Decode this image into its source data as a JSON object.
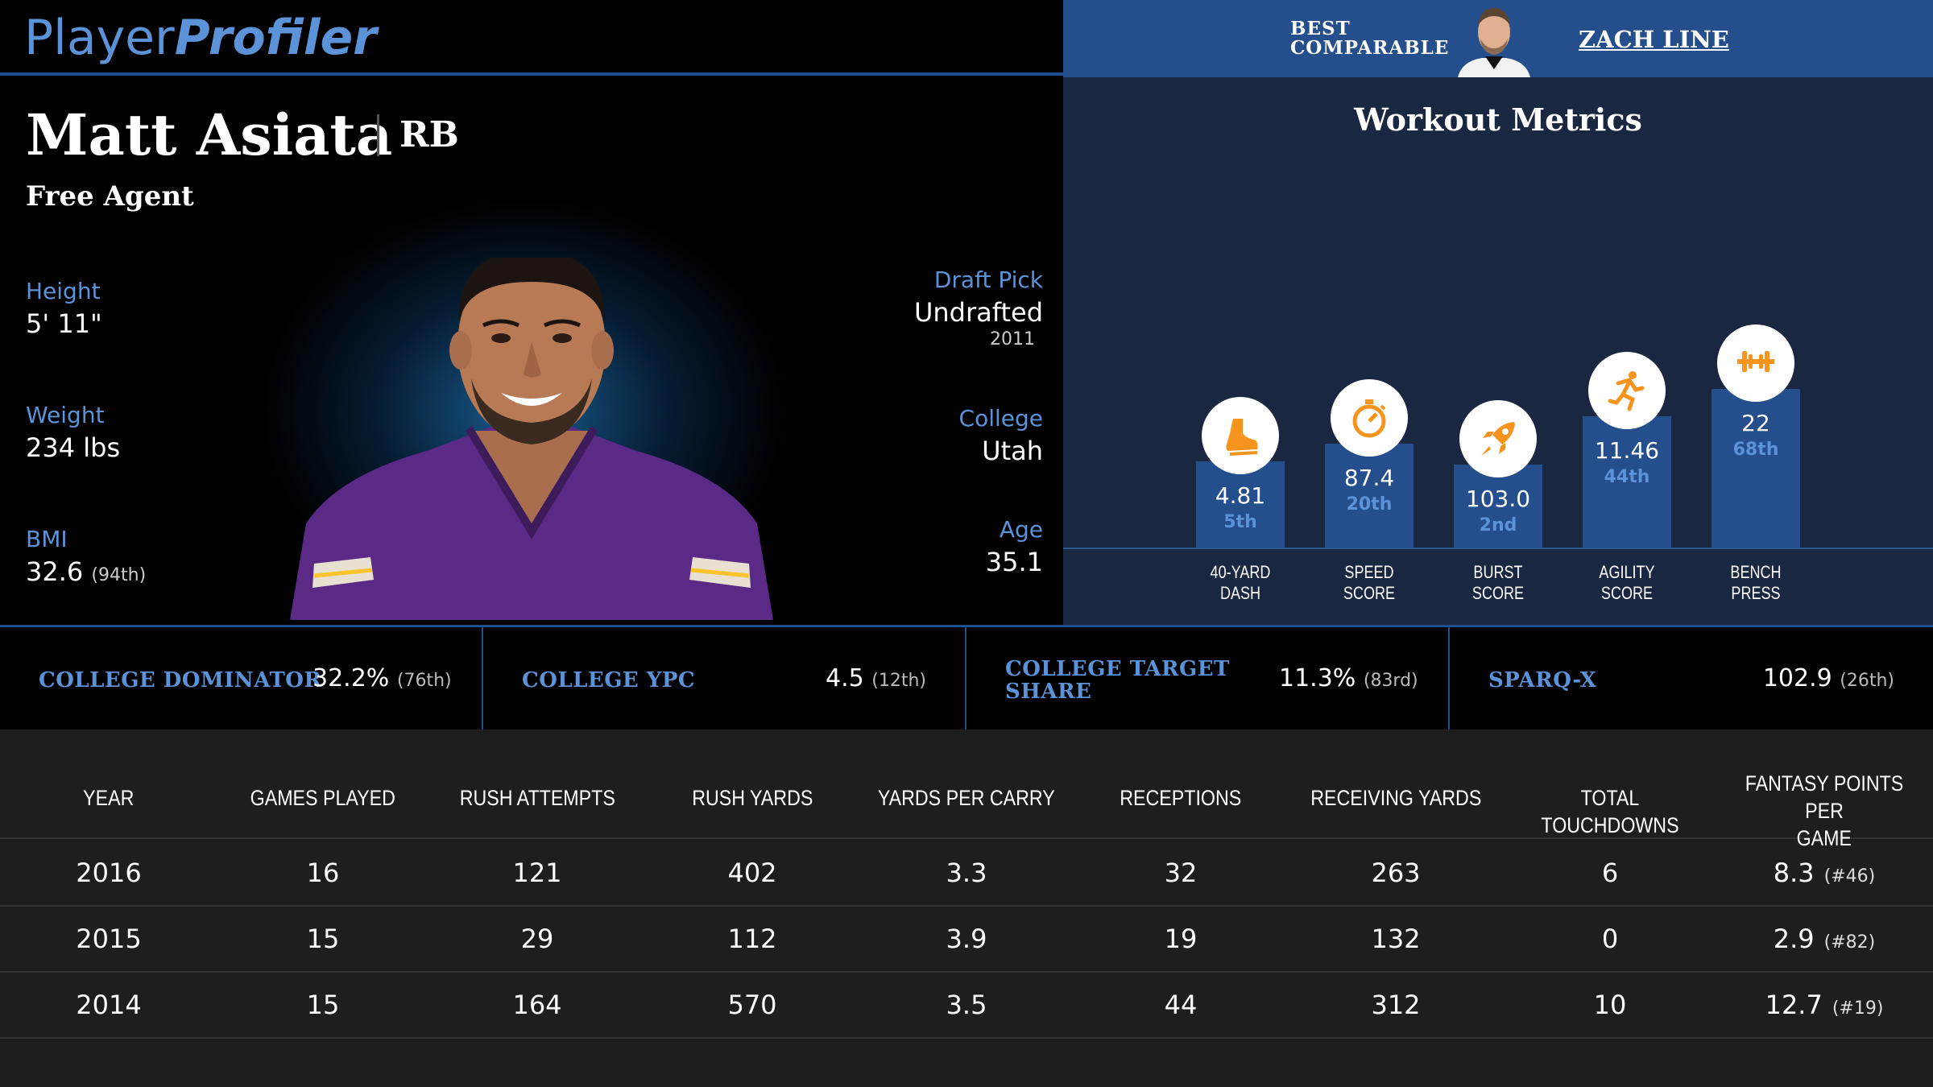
{
  "brand": {
    "part1": "Player",
    "part2": "Profiler"
  },
  "player": {
    "name": "Matt Asiata",
    "position": "RB",
    "team": "Free Agent",
    "height_label": "Height",
    "height": "5' 11\"",
    "weight_label": "Weight",
    "weight": "234 lbs",
    "bmi_label": "BMI",
    "bmi": "32.6",
    "bmi_rank": "(94th)",
    "draft_label": "Draft Pick",
    "draft": "Undrafted",
    "draft_year": "2011",
    "college_label": "College",
    "college": "Utah",
    "age_label": "Age",
    "age": "35.1"
  },
  "comparable": {
    "label_line1": "BEST",
    "label_line2": "COMPARABLE",
    "name": "ZACH LINE"
  },
  "workout": {
    "title": "Workout Metrics",
    "metrics": [
      {
        "icon": "shoe-icon",
        "value": "4.81",
        "pct": "5th",
        "name1": "40-YARD",
        "name2": "DASH",
        "level": 5
      },
      {
        "icon": "stopwatch-icon",
        "value": "87.4",
        "pct": "20th",
        "name1": "SPEED",
        "name2": "SCORE",
        "level": 20
      },
      {
        "icon": "rocket-icon",
        "value": "103.0",
        "pct": "2nd",
        "name1": "BURST",
        "name2": "SCORE",
        "level": 2
      },
      {
        "icon": "runner-icon",
        "value": "11.46",
        "pct": "44th",
        "name1": "AGILITY",
        "name2": "SCORE",
        "level": 44
      },
      {
        "icon": "dumbbell-icon",
        "value": "22",
        "pct": "68th",
        "name1": "BENCH",
        "name2": "PRESS",
        "level": 68
      }
    ]
  },
  "college_metrics": [
    {
      "label_line1": "COLLEGE DOMINATOR",
      "label_line2": "",
      "value": "32.2%",
      "rank": "(76th)"
    },
    {
      "label_line1": "COLLEGE YPC",
      "label_line2": "",
      "value": "4.5",
      "rank": "(12th)"
    },
    {
      "label_line1": "COLLEGE TARGET",
      "label_line2": "SHARE",
      "value": "11.3%",
      "rank": "(83rd)"
    },
    {
      "label_line1": "SPARQ-X",
      "label_line2": "",
      "value": "102.9",
      "rank": "(26th)"
    }
  ],
  "stats_table": {
    "headers": [
      {
        "l1": "YEAR",
        "l2": ""
      },
      {
        "l1": "GAMES PLAYED",
        "l2": ""
      },
      {
        "l1": "RUSH ATTEMPTS",
        "l2": ""
      },
      {
        "l1": "RUSH YARDS",
        "l2": ""
      },
      {
        "l1": "YARDS PER CARRY",
        "l2": ""
      },
      {
        "l1": "RECEPTIONS",
        "l2": ""
      },
      {
        "l1": "RECEIVING YARDS",
        "l2": ""
      },
      {
        "l1": "TOTAL TOUCHDOWNS",
        "l2": ""
      },
      {
        "l1": "FANTASY POINTS PER",
        "l2": "GAME"
      }
    ],
    "rows": [
      {
        "year": "2016",
        "games": "16",
        "rush_att": "121",
        "rush_yds": "402",
        "ypc": "3.3",
        "rec": "32",
        "rec_yds": "263",
        "td": "6",
        "fppg": "8.3",
        "fppg_rank": "(#46)"
      },
      {
        "year": "2015",
        "games": "15",
        "rush_att": "29",
        "rush_yds": "112",
        "ypc": "3.9",
        "rec": "19",
        "rec_yds": "132",
        "td": "0",
        "fppg": "2.9",
        "fppg_rank": "(#82)"
      },
      {
        "year": "2014",
        "games": "15",
        "rush_att": "164",
        "rush_yds": "570",
        "ypc": "3.5",
        "rec": "44",
        "rec_yds": "312",
        "td": "10",
        "fppg": "12.7",
        "fppg_rank": "(#19)"
      }
    ]
  },
  "colors": {
    "accent": "#5c93d8",
    "bar": "#244e8c",
    "icon_orange": "#f7941d",
    "jersey_purple": "#5b2a86"
  }
}
